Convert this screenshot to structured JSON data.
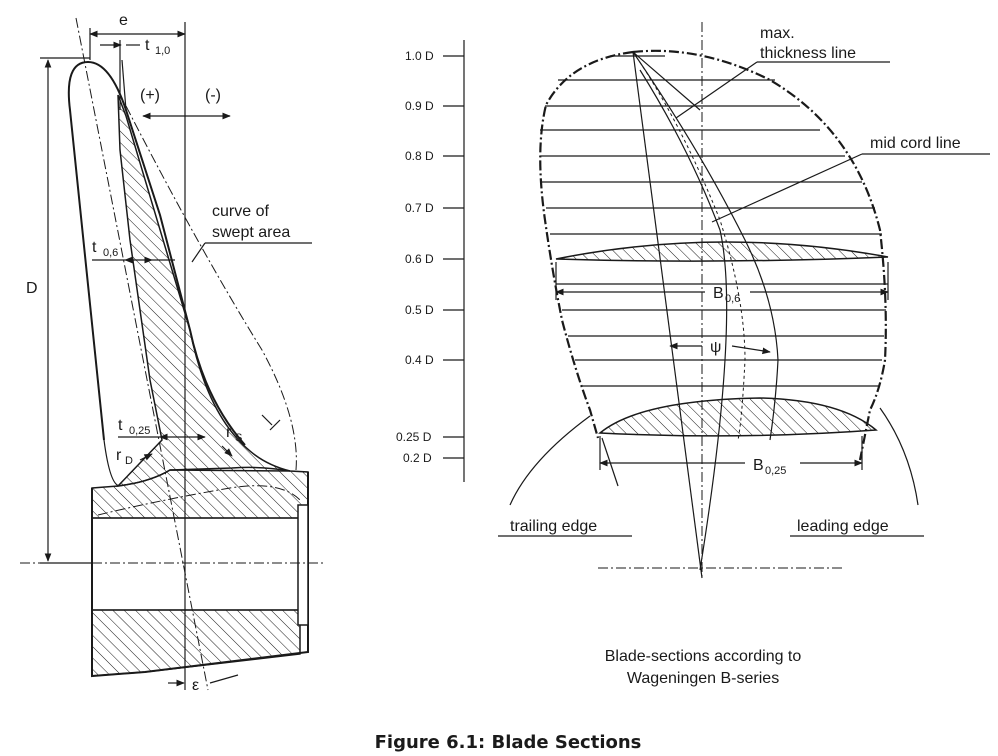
{
  "left_labels": {
    "e": "e",
    "t10": "t",
    "t10_sub": "1,0",
    "plus": "(+)",
    "minus": "(-)",
    "curve1": "curve of",
    "curve2": "swept area",
    "D": "D",
    "t06": "t",
    "t06_sub": "0,6",
    "t025": "t",
    "t025_sub": "0,25",
    "rs": "r",
    "rs_sub": "S",
    "rd": "r",
    "rd_sub": "D",
    "eps": "ε"
  },
  "levels": [
    "1.0 D",
    "0.9 D",
    "0.8 D",
    "0.7 D",
    "0.6 D",
    "0.5 D",
    "0.4 D",
    "0.25 D",
    "0.2 D"
  ],
  "right_labels": {
    "max1": "max.",
    "max2": "thickness line",
    "mid": "mid cord line",
    "b06": "B",
    "b06_sub": "0,6",
    "psi": "ψ",
    "b025": "B",
    "b025_sub": "0,25",
    "trailing": "trailing  edge",
    "leading": "leading edge",
    "caption1": "Blade-sections according to",
    "caption2": "Wageningen B-series"
  },
  "figure_caption": "Figure 6.1: Blade Sections"
}
